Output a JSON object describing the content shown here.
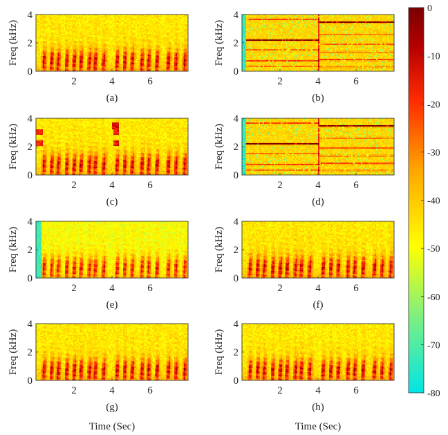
{
  "chart_data": {
    "type": "heatmap",
    "description_units": {
      "x": "Time (Sec)",
      "y": "Freq (kHz)",
      "color": "dB"
    },
    "colorbar": {
      "ticks": [
        0,
        -10,
        -20,
        -30,
        -40,
        -50,
        -60,
        -70,
        -80
      ],
      "tick_labels": [
        "0",
        "-10",
        "-20",
        "-30",
        "-40",
        "-50",
        "-60",
        "-70",
        "-80"
      ],
      "range": [
        -80,
        0
      ],
      "colors": [
        "#00e5e5",
        "#7ff07f",
        "#ffff00",
        "#ffa500",
        "#ff2a00",
        "#b40000",
        "#7a0000"
      ]
    },
    "panels": [
      {
        "label": "(a)",
        "kind": "speech",
        "seed": 11,
        "pattern": "clean"
      },
      {
        "label": "(b)",
        "kind": "tonal",
        "seed": 23,
        "pattern": "tones"
      },
      {
        "label": "(c)",
        "kind": "speech",
        "seed": 37,
        "pattern": "speech_with_tone_bursts"
      },
      {
        "label": "(d)",
        "kind": "tonal",
        "seed": 41,
        "pattern": "tones_variant"
      },
      {
        "label": "(e)",
        "kind": "speech",
        "seed": 53,
        "pattern": "residual_noise"
      },
      {
        "label": "(f)",
        "kind": "speech",
        "seed": 67,
        "pattern": "enhanced"
      },
      {
        "label": "(g)",
        "kind": "speech",
        "seed": 79,
        "pattern": "enhanced"
      },
      {
        "label": "(h)",
        "kind": "speech",
        "seed": 83,
        "pattern": "enhanced"
      }
    ],
    "x_axis": {
      "label": "Time (Sec)",
      "range": [
        0,
        8
      ],
      "ticks": [
        2,
        4,
        6
      ],
      "tick_labels": [
        "2",
        "4",
        "6"
      ]
    },
    "y_axis": {
      "label": "Freq (kHz)",
      "range": [
        0,
        4
      ],
      "ticks": [
        0,
        2,
        4
      ],
      "tick_labels": [
        "0",
        "2",
        "4"
      ]
    }
  }
}
